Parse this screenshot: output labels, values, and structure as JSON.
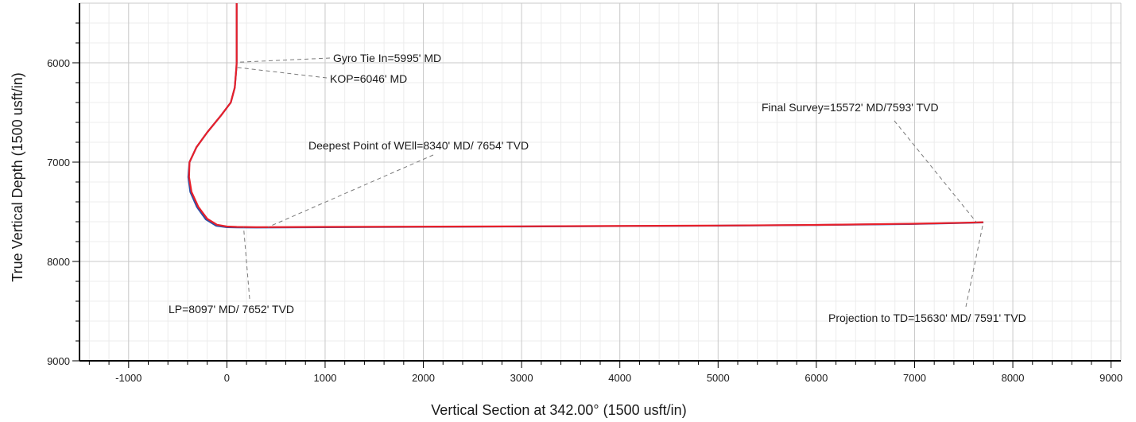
{
  "chart_data": {
    "type": "line",
    "title": "",
    "xlabel": "Vertical Section at 342.00° (1500 usft/in)",
    "ylabel": "True Vertical Depth (1500 usft/in)",
    "xlim": [
      -1500,
      9100
    ],
    "ylim": [
      9000,
      5400
    ],
    "y_inverted": true,
    "grid": true,
    "x_ticks": [
      -1000,
      0,
      1000,
      2000,
      3000,
      4000,
      5000,
      6000,
      7000,
      8000,
      9000
    ],
    "y_ticks": [
      6000,
      7000,
      8000,
      9000
    ],
    "x_tick_labels": [
      "-1000",
      "0",
      "1000",
      "2000",
      "3000",
      "4000",
      "5000",
      "6000",
      "7000",
      "8000",
      "9000"
    ],
    "y_tick_labels": [
      "6000",
      "7000",
      "8000",
      "9000"
    ],
    "series": [
      {
        "color": "#e8202a",
        "x": [
          100,
          100,
          100,
          97,
          80,
          40,
          -60,
          -200,
          -310,
          -380,
          -385,
          -360,
          -290,
          -200,
          -100,
          0,
          100,
          300,
          1000,
          3000,
          5000,
          6000,
          7000,
          7500,
          7700
        ],
        "y": [
          5400,
          5700,
          5995,
          6046,
          6250,
          6400,
          6530,
          6700,
          6850,
          7000,
          7150,
          7300,
          7450,
          7570,
          7630,
          7648,
          7652,
          7654,
          7652,
          7646,
          7638,
          7632,
          7620,
          7610,
          7605
        ]
      },
      {
        "color": "#2b4fa8",
        "x": [
          100,
          100,
          100,
          97,
          80,
          40,
          -60,
          -200,
          -310,
          -380,
          -392,
          -372,
          -305,
          -215,
          -110,
          0,
          100,
          300,
          1000,
          3000,
          5000,
          6000,
          7000,
          7500,
          7700
        ],
        "y": [
          5400,
          5700,
          5995,
          6046,
          6250,
          6400,
          6530,
          6700,
          6850,
          7000,
          7150,
          7300,
          7450,
          7575,
          7640,
          7655,
          7657,
          7658,
          7655,
          7648,
          7640,
          7633,
          7622,
          7612,
          7607
        ]
      }
    ],
    "annotations": [
      {
        "text": "Gyro Tie In=5995' MD",
        "point": [
          100,
          5995
        ]
      },
      {
        "text": "KOP=6046' MD",
        "point": [
          100,
          6046
        ]
      },
      {
        "text": "Deepest Point of WEll=8340' MD/ 7654' TVD",
        "point": [
          420,
          7654
        ]
      },
      {
        "text": "LP=8097' MD/ 7652' TVD",
        "point": [
          170,
          7652
        ]
      },
      {
        "text": "Final Survey=15572' MD/7593' TVD",
        "point": [
          7630,
          7605
        ]
      },
      {
        "text": "Projection to TD=15630' MD/ 7591' TVD",
        "point": [
          7700,
          7605
        ]
      }
    ]
  }
}
